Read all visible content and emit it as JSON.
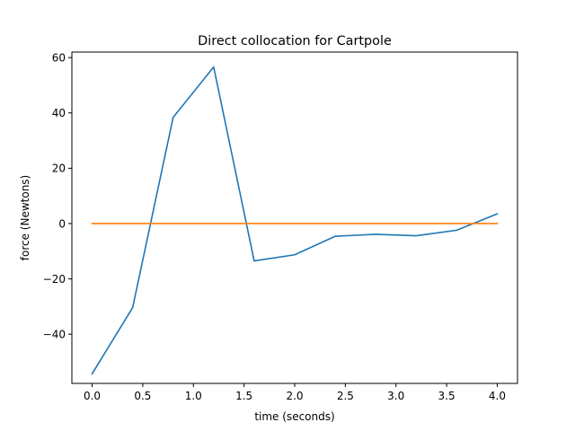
{
  "chart_data": {
    "type": "line",
    "title": "Direct collocation for Cartpole",
    "xlabel": "time (seconds)",
    "ylabel": "force (Newtons)",
    "xlim": [
      -0.2,
      4.2
    ],
    "ylim": [
      -57.8,
      62.0
    ],
    "xticks": [
      0.0,
      0.5,
      1.0,
      1.5,
      2.0,
      2.5,
      3.0,
      3.5,
      4.0
    ],
    "xtick_labels": [
      "0.0",
      "0.5",
      "1.0",
      "1.5",
      "2.0",
      "2.5",
      "3.0",
      "3.5",
      "4.0"
    ],
    "yticks": [
      -40,
      -20,
      0,
      20,
      40,
      60
    ],
    "ytick_labels": [
      "−40",
      "−20",
      "0",
      "20",
      "40",
      "60"
    ],
    "grid": false,
    "series": [
      {
        "color": "#1f77b4",
        "x": [
          0.0,
          0.4,
          0.8,
          1.2,
          1.6,
          2.0,
          2.4,
          2.8,
          3.2,
          3.6,
          4.0
        ],
        "y": [
          -54.3,
          -30.4,
          38.4,
          56.6,
          -13.5,
          -11.3,
          -4.6,
          -3.9,
          -4.4,
          -2.4,
          3.5
        ]
      },
      {
        "color": "#ff7f0e",
        "x": [
          0.0,
          4.0
        ],
        "y": [
          0.0,
          0.0
        ]
      }
    ]
  }
}
